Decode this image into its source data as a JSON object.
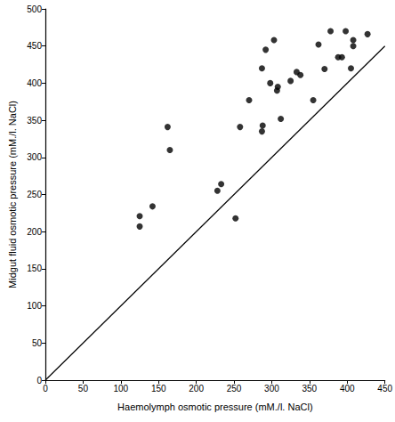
{
  "chart_data": {
    "type": "scatter",
    "x_label": "Haemolymph osmotic pressure (mM./l. NaCl)",
    "y_label": "Midgut fluid osmotic pressure (mM./l. NaCl)",
    "xlim": [
      0,
      450
    ],
    "xticks": [
      0,
      50,
      100,
      150,
      200,
      250,
      300,
      350,
      400,
      450
    ],
    "ylim": [
      0,
      500
    ],
    "yticks": [
      0,
      50,
      100,
      150,
      200,
      250,
      300,
      350,
      400,
      450,
      500
    ],
    "grid": false,
    "series": [
      {
        "type": "scatter",
        "color": "#000000",
        "marker": "circle",
        "x": [
          125,
          125,
          142,
          162,
          165,
          228,
          233,
          252,
          258,
          270,
          288,
          287,
          287,
          292,
          298,
          303,
          307,
          308,
          312,
          325,
          333,
          338,
          355,
          362,
          370,
          378,
          388,
          393,
          398,
          405,
          408,
          408,
          427
        ],
        "values": [
          207,
          221,
          234,
          341,
          310,
          255,
          264,
          218,
          341,
          377,
          343,
          335,
          420,
          445,
          400,
          458,
          390,
          395,
          352,
          403,
          415,
          411,
          377,
          452,
          419,
          470,
          435,
          435,
          470,
          420,
          450,
          458,
          466
        ]
      },
      {
        "type": "line",
        "color": "#000000",
        "line_style": "solid",
        "x": [
          0,
          450
        ],
        "values": [
          0,
          450
        ]
      }
    ]
  }
}
